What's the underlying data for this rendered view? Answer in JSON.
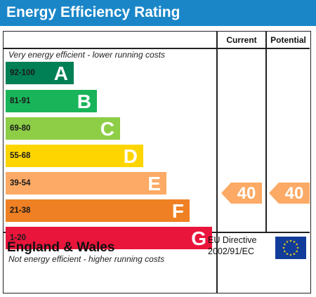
{
  "title": "Energy Efficiency Rating",
  "columns": {
    "current": "Current",
    "potential": "Potential"
  },
  "captions": {
    "top": "Very energy efficient - lower running costs",
    "bottom": "Not energy efficient - higher running costs"
  },
  "bands": [
    {
      "range": "92-100",
      "letter": "A",
      "color": "#008054"
    },
    {
      "range": "81-91",
      "letter": "B",
      "color": "#19b459"
    },
    {
      "range": "69-80",
      "letter": "C",
      "color": "#8dce46"
    },
    {
      "range": "55-68",
      "letter": "D",
      "color": "#ffd500"
    },
    {
      "range": "39-54",
      "letter": "E",
      "color": "#fcaa65"
    },
    {
      "range": "21-38",
      "letter": "F",
      "color": "#ef8023"
    },
    {
      "range": "1-20",
      "letter": "G",
      "color": "#e9153b"
    }
  ],
  "current_rating": "40",
  "potential_rating": "40",
  "rating_color": "#fcaa65",
  "footer": {
    "region": "England & Wales",
    "directive_line1": "EU Directive",
    "directive_line2": "2002/91/EC"
  },
  "flag_icon": "eu-flag-icon"
}
